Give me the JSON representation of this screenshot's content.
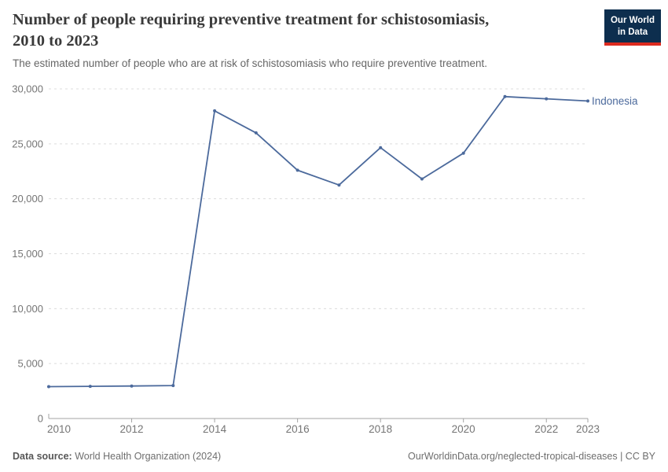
{
  "header": {
    "title_line1": "Number of people requiring preventive treatment for schistosomiasis,",
    "title_line2": "2010 to 2023",
    "subtitle": "The estimated number of people who are at risk of schistosomiasis who require preventive treatment."
  },
  "logo": {
    "line1": "Our World",
    "line2": "in Data",
    "bg_color": "#0d2e4e",
    "accent_color": "#dc2a1f"
  },
  "chart_data": {
    "type": "line",
    "title": "Number of people requiring preventive treatment for schistosomiasis, 2010 to 2023",
    "subtitle": "The estimated number of people who are at risk of schistosomiasis who require preventive treatment.",
    "x": [
      2010,
      2011,
      2012,
      2013,
      2014,
      2015,
      2016,
      2017,
      2018,
      2019,
      2020,
      2021,
      2022,
      2023
    ],
    "series": [
      {
        "name": "Indonesia",
        "color": "#4c6a9c",
        "values": [
          2900,
          2930,
          2960,
          3000,
          28000,
          26000,
          22600,
          21250,
          24650,
          21800,
          24150,
          29300,
          29100,
          28900
        ]
      }
    ],
    "xlim": [
      2010,
      2023
    ],
    "ylim": [
      0,
      30000
    ],
    "xticks": [
      2010,
      2012,
      2014,
      2016,
      2018,
      2020,
      2022,
      2023
    ],
    "yticks": [
      0,
      5000,
      10000,
      15000,
      20000,
      25000,
      30000
    ],
    "grid": "horizontal-dashed",
    "legend": "end-of-line-label"
  },
  "colors": {
    "line": "#4c6a9c",
    "grid": "#dcdcdc",
    "axis": "#a3a3a3",
    "tick_text": "#757575"
  },
  "footer": {
    "source_label": "Data source:",
    "source_value": "World Health Organization (2024)",
    "citation": "OurWorldinData.org/neglected-tropical-diseases | CC BY"
  }
}
